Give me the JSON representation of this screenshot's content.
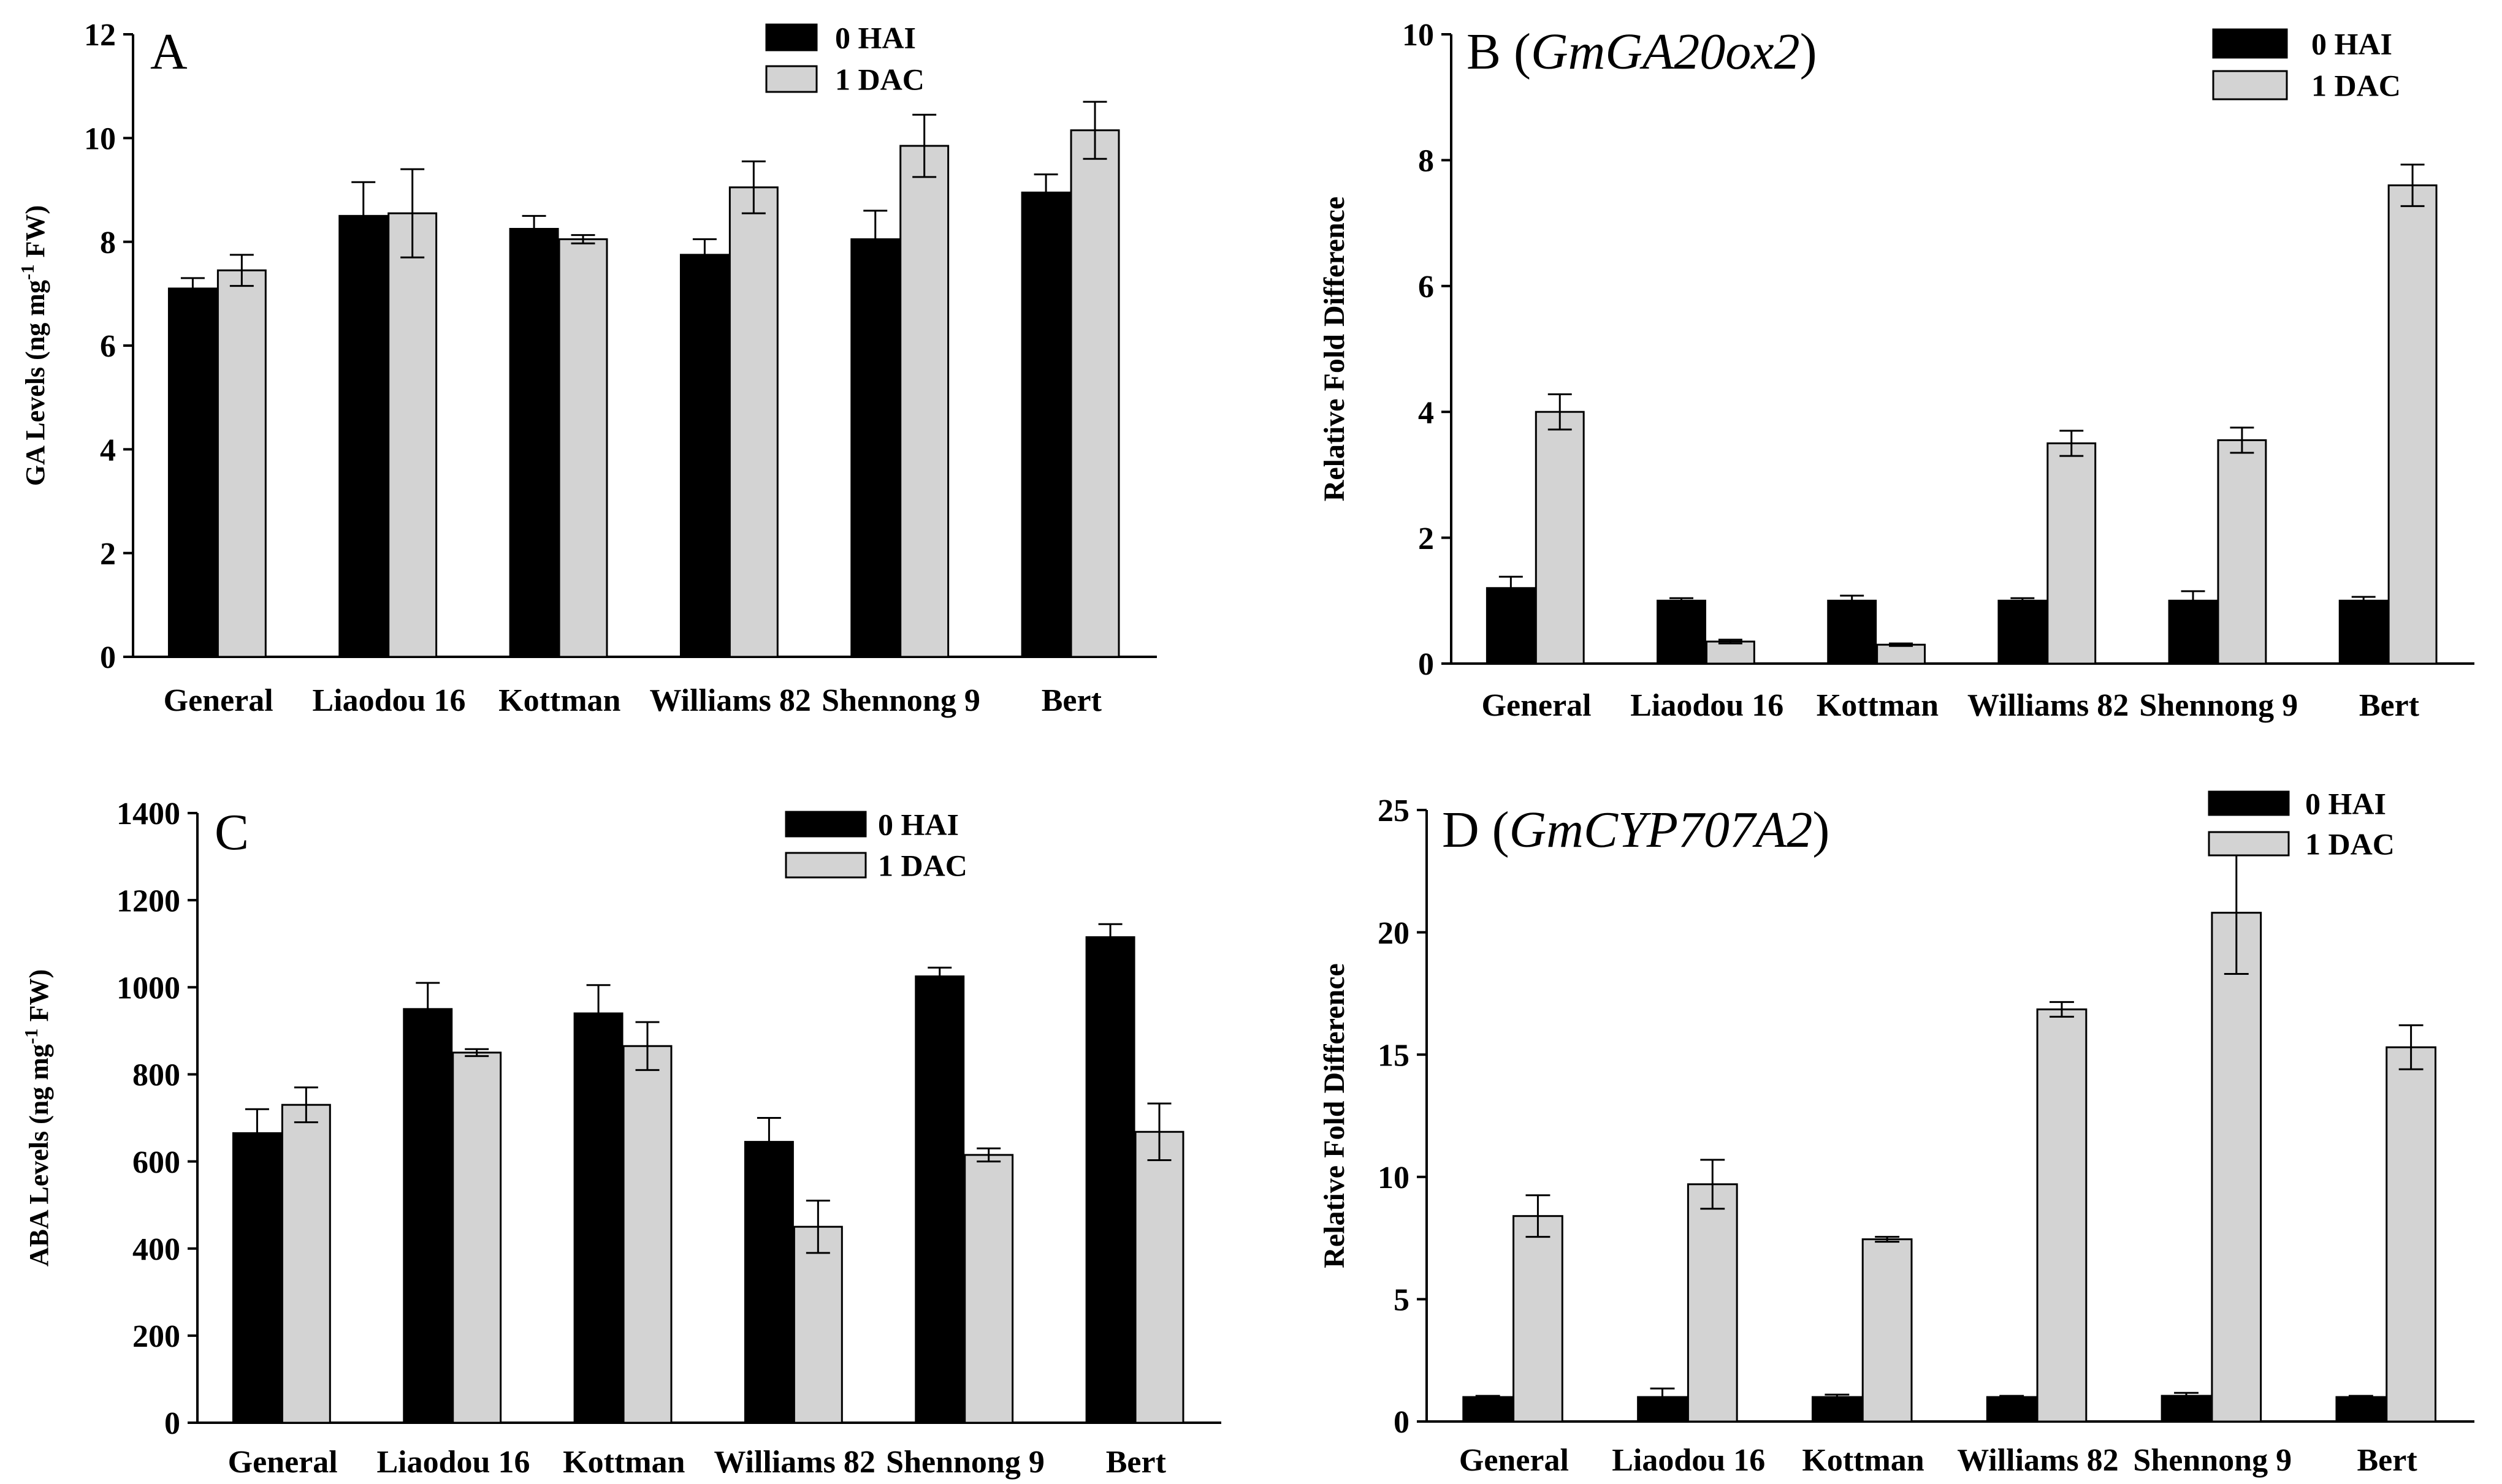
{
  "colors": {
    "hai": "#000000",
    "dac": "#d3d3d3",
    "axis": "#000000"
  },
  "chart_data": [
    {
      "panel": "A",
      "type": "bar",
      "panel_label": "A",
      "gene": "",
      "ylabel_main": "GA Levels (ng mg",
      "ylabel_sup": "-1",
      "ylabel_tail": " FW)",
      "ylim": [
        0,
        12
      ],
      "yticks": [
        0,
        2,
        4,
        6,
        8,
        10,
        12
      ],
      "categories": [
        "General",
        "Liaodou 16",
        "Kottman",
        "Williams 82",
        "Shennong 9",
        "Bert"
      ],
      "series": [
        {
          "name": "0 HAI",
          "values": [
            7.1,
            8.5,
            8.25,
            7.75,
            8.05,
            8.95
          ],
          "errors": [
            0.2,
            0.65,
            0.25,
            0.3,
            0.55,
            0.35
          ]
        },
        {
          "name": "1 DAC",
          "values": [
            7.45,
            8.55,
            8.05,
            9.05,
            9.85,
            10.15
          ],
          "errors": [
            0.3,
            0.85,
            0.08,
            0.5,
            0.6,
            0.55
          ]
        }
      ]
    },
    {
      "panel": "B",
      "type": "bar",
      "panel_label": "B (",
      "gene": "GmGA20ox2",
      "panel_label_close": ")",
      "ylabel_main": "Relative  Fold  Difference",
      "ylabel_sup": "",
      "ylabel_tail": "",
      "ylim": [
        0,
        10
      ],
      "yticks": [
        0,
        2,
        4,
        6,
        8,
        10
      ],
      "categories": [
        "General",
        "Liaodou 16",
        "Kottman",
        "Williams 82",
        "Shennong 9",
        "Bert"
      ],
      "series": [
        {
          "name": "0 HAI",
          "values": [
            1.2,
            1.0,
            1.0,
            1.0,
            1.0,
            1.0
          ],
          "errors": [
            0.18,
            0.04,
            0.08,
            0.04,
            0.15,
            0.06
          ]
        },
        {
          "name": "1 DAC",
          "values": [
            4.0,
            0.35,
            0.3,
            3.5,
            3.55,
            7.6
          ],
          "errors": [
            0.28,
            0.03,
            0.02,
            0.2,
            0.2,
            0.33
          ]
        }
      ]
    },
    {
      "panel": "C",
      "type": "bar",
      "panel_label": "C",
      "gene": "",
      "ylabel_main": "ABA Levels (ng mg",
      "ylabel_sup": "-1",
      "ylabel_tail": " FW)",
      "ylim": [
        0,
        1400
      ],
      "yticks": [
        0,
        200,
        400,
        600,
        800,
        1000,
        1200,
        1400
      ],
      "categories": [
        "General",
        "Liaodou 16",
        "Kottman",
        "Williams 82",
        "Shennong 9",
        "Bert"
      ],
      "series": [
        {
          "name": "0 HAI",
          "values": [
            665,
            950,
            940,
            645,
            1025,
            1115
          ],
          "errors": [
            55,
            60,
            65,
            55,
            20,
            30
          ]
        },
        {
          "name": "1 DAC",
          "values": [
            730,
            850,
            865,
            450,
            615,
            668
          ],
          "errors": [
            40,
            8,
            55,
            60,
            15,
            65
          ]
        }
      ]
    },
    {
      "panel": "D",
      "type": "bar",
      "panel_label": "D (",
      "gene": "GmCYP707A2",
      "panel_label_close": ")",
      "ylabel_main": "Relative  Fold  Difference",
      "ylabel_sup": "",
      "ylabel_tail": "",
      "ylim": [
        0,
        25
      ],
      "yticks": [
        0,
        5,
        10,
        15,
        20,
        25
      ],
      "categories": [
        "General",
        "Liaodou 16",
        "Kottman",
        "Williams 82",
        "Shennong 9",
        "Bert"
      ],
      "series": [
        {
          "name": "0 HAI",
          "values": [
            1.0,
            1.0,
            1.0,
            1.0,
            1.05,
            1.0
          ],
          "errors": [
            0.05,
            0.35,
            0.1,
            0.05,
            0.12,
            0.05
          ]
        },
        {
          "name": "1 DAC",
          "values": [
            8.4,
            9.7,
            7.45,
            16.85,
            20.8,
            15.3
          ],
          "errors": [
            0.85,
            1.0,
            0.1,
            0.3,
            2.5,
            0.9
          ]
        }
      ]
    }
  ]
}
